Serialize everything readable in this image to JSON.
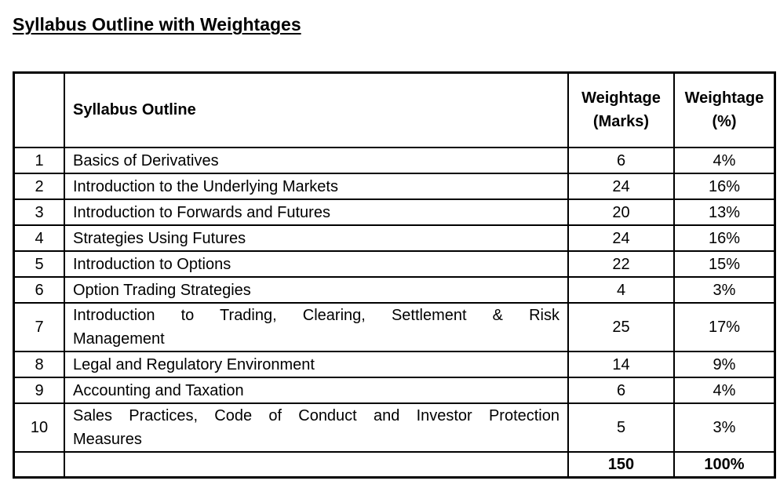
{
  "page": {
    "title": "Syllabus Outline with Weightages"
  },
  "table": {
    "headers": {
      "index": "",
      "outline": "Syllabus Outline",
      "marks": "Weightage (Marks)",
      "percent": "Weightage (%)"
    },
    "rows": [
      {
        "num": "1",
        "outline": "Basics of Derivatives",
        "marks": "6",
        "percent": "4%"
      },
      {
        "num": "2",
        "outline": "Introduction to the Underlying Markets",
        "marks": "24",
        "percent": "16%"
      },
      {
        "num": "3",
        "outline": "Introduction to Forwards and Futures",
        "marks": "20",
        "percent": "13%"
      },
      {
        "num": "4",
        "outline": "Strategies Using Futures",
        "marks": "24",
        "percent": "16%"
      },
      {
        "num": "5",
        "outline": "Introduction to Options",
        "marks": "22",
        "percent": "15%"
      },
      {
        "num": "6",
        "outline": "Option Trading Strategies",
        "marks": "4",
        "percent": "3%"
      },
      {
        "num": "7",
        "outline": "Introduction to Trading, Clearing, Settlement & Risk Management",
        "outline_lines": [
          "Introduction to Trading, Clearing, Settlement & Risk",
          "Management"
        ],
        "marks": "25",
        "percent": "17%"
      },
      {
        "num": "8",
        "outline": "Legal and Regulatory Environment",
        "marks": "14",
        "percent": "9%"
      },
      {
        "num": "9",
        "outline": "Accounting and Taxation",
        "marks": "6",
        "percent": "4%"
      },
      {
        "num": "10",
        "outline": "Sales Practices, Code of Conduct and Investor Protection Measures",
        "outline_lines": [
          "Sales Practices, Code of Conduct and Investor Protection",
          "Measures"
        ],
        "marks": "5",
        "percent": "3%"
      }
    ],
    "total": {
      "num": "",
      "outline": "",
      "marks": "150",
      "percent": "100%"
    }
  }
}
